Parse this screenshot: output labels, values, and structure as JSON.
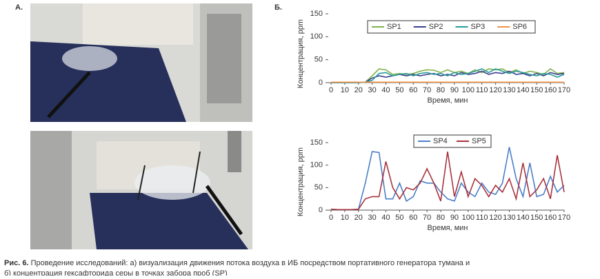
{
  "panel_labels": {
    "a": "А.",
    "b": "Б."
  },
  "chart_data": [
    {
      "type": "line",
      "ylabel": "Концентрация, ppm",
      "xlabel": "Время, мин",
      "x": [
        0,
        5,
        10,
        15,
        20,
        25,
        30,
        35,
        40,
        45,
        50,
        55,
        60,
        65,
        70,
        75,
        80,
        85,
        90,
        95,
        100,
        105,
        110,
        115,
        120,
        125,
        130,
        135,
        140,
        145,
        150,
        155,
        160,
        165,
        170
      ],
      "xlim": [
        0,
        170
      ],
      "xticks": [
        0,
        10,
        20,
        30,
        40,
        50,
        60,
        70,
        80,
        90,
        100,
        110,
        120,
        130,
        140,
        150,
        160,
        170
      ],
      "ylim": [
        0,
        150
      ],
      "yticks": [
        0,
        50,
        100,
        150
      ],
      "legend": "top",
      "series": [
        {
          "name": "SP1",
          "color": "#7fb24a",
          "values": [
            0,
            0,
            0,
            0,
            0,
            1,
            15,
            30,
            28,
            18,
            20,
            18,
            20,
            25,
            28,
            27,
            22,
            28,
            22,
            25,
            20,
            28,
            22,
            30,
            28,
            30,
            22,
            28,
            20,
            25,
            22,
            18,
            30,
            20,
            22
          ]
        },
        {
          "name": "SP2",
          "color": "#3a3f8f",
          "values": [
            0,
            0,
            0,
            0,
            0,
            1,
            10,
            15,
            12,
            15,
            18,
            15,
            18,
            15,
            18,
            20,
            15,
            18,
            15,
            22,
            18,
            20,
            25,
            18,
            22,
            20,
            25,
            18,
            20,
            15,
            20,
            15,
            22,
            18,
            20
          ]
        },
        {
          "name": "SP3",
          "color": "#2a9a9a",
          "values": [
            0,
            0,
            0,
            0,
            0,
            1,
            5,
            20,
            22,
            15,
            18,
            20,
            15,
            20,
            22,
            18,
            20,
            15,
            22,
            18,
            20,
            25,
            30,
            22,
            30,
            25,
            20,
            25,
            22,
            18,
            15,
            20,
            18,
            12,
            18
          ]
        },
        {
          "name": "SP6",
          "color": "#f0904a",
          "values": [
            1,
            1,
            1,
            1,
            1,
            1,
            1,
            1,
            1,
            1,
            1,
            1,
            1,
            1,
            1,
            1,
            1,
            1,
            1,
            1,
            1,
            1,
            1,
            1,
            1,
            1,
            1,
            1,
            1,
            1,
            1,
            1,
            1,
            1,
            1
          ]
        }
      ]
    },
    {
      "type": "line",
      "ylabel": "Концентрация, ppm",
      "xlabel": "Время, мин",
      "x": [
        0,
        5,
        10,
        15,
        20,
        25,
        30,
        35,
        40,
        45,
        50,
        55,
        60,
        65,
        70,
        75,
        80,
        85,
        90,
        95,
        100,
        105,
        110,
        115,
        120,
        125,
        130,
        135,
        140,
        145,
        150,
        155,
        160,
        165,
        170
      ],
      "xlim": [
        0,
        170
      ],
      "xticks": [
        0,
        10,
        20,
        30,
        40,
        50,
        60,
        70,
        80,
        90,
        100,
        110,
        120,
        130,
        140,
        150,
        160,
        170
      ],
      "ylim": [
        0,
        150
      ],
      "yticks": [
        0,
        50,
        100,
        150
      ],
      "legend": "top",
      "series": [
        {
          "name": "SP4",
          "color": "#4a7fc8",
          "values": [
            2,
            1,
            1,
            1,
            2,
            60,
            130,
            128,
            25,
            25,
            60,
            20,
            30,
            65,
            60,
            60,
            40,
            25,
            20,
            60,
            40,
            30,
            60,
            40,
            35,
            60,
            140,
            70,
            30,
            105,
            30,
            35,
            75,
            40,
            55
          ]
        },
        {
          "name": "SP5",
          "color": "#a8323c",
          "values": [
            2,
            1,
            1,
            1,
            2,
            25,
            30,
            30,
            108,
            50,
            25,
            50,
            45,
            60,
            92,
            60,
            20,
            130,
            30,
            85,
            30,
            70,
            55,
            30,
            55,
            40,
            70,
            25,
            105,
            30,
            45,
            70,
            25,
            122,
            40
          ]
        }
      ]
    }
  ],
  "caption": {
    "label": "Рис. 6.",
    "line1": "Проведение исследований: а) визуализация движения потока воздуха в ИБ посредством портативного генератора тумана и",
    "line2": "б) концентрация гексафторида серы в точках забора проб (SP)"
  }
}
